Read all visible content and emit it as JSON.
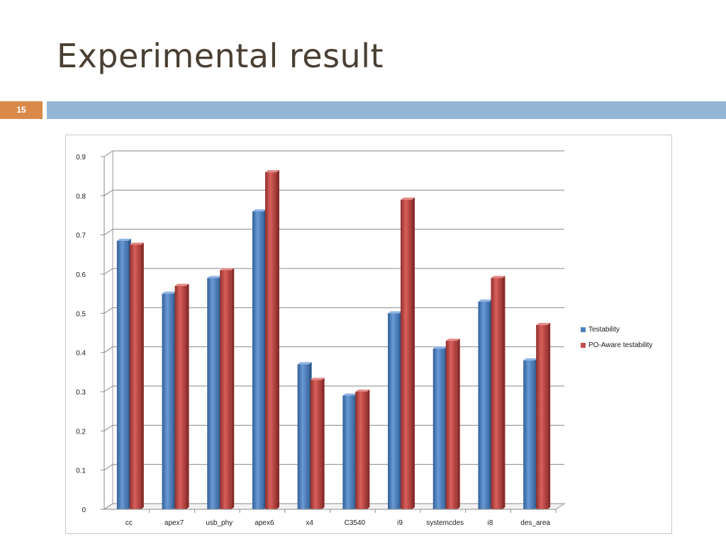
{
  "slide": {
    "title": "Experimental result",
    "page_number": "15"
  },
  "colors": {
    "accent_band": "#93b6d4",
    "page_badge": "#d98a4a",
    "title_text": "#4a3f33"
  },
  "chart_data": {
    "type": "bar",
    "title": "",
    "xlabel": "",
    "ylabel": "",
    "ylim": [
      0,
      0.9
    ],
    "yticks": [
      "0",
      "0.1",
      "0.2",
      "0.3",
      "0.4",
      "0.5",
      "0.6",
      "0.7",
      "0.8",
      "0.9"
    ],
    "grid": true,
    "legend_position": "right",
    "categories": [
      "cc",
      "apex7",
      "usb_phy",
      "apex6",
      "x4",
      "C3540",
      "i9",
      "systemcdes",
      "i8",
      "des_area"
    ],
    "series": [
      {
        "name": "Testability",
        "color": "#4f81bd",
        "values": [
          0.685,
          0.55,
          0.59,
          0.76,
          0.37,
          0.29,
          0.5,
          0.41,
          0.53,
          0.38
        ]
      },
      {
        "name": "PO-Aware testability",
        "color": "#c0504d",
        "values": [
          0.675,
          0.57,
          0.61,
          0.86,
          0.33,
          0.3,
          0.79,
          0.43,
          0.59,
          0.47
        ]
      }
    ]
  }
}
